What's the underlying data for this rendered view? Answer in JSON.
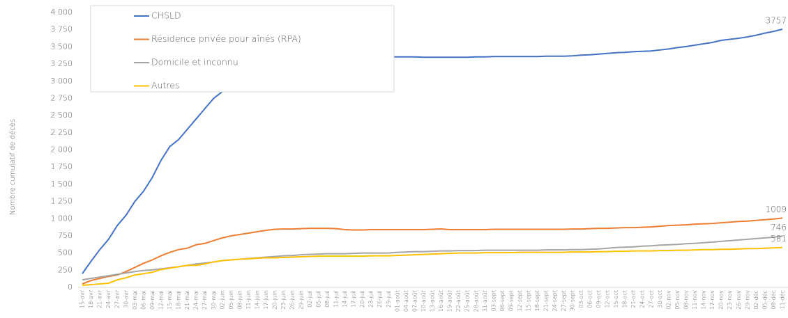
{
  "chart_data": {
    "type": "line",
    "ylabel": "Nombre cumulatif de décès",
    "categories": [
      "15-avr",
      "18-avr",
      "21-avr",
      "24-avr",
      "27-avr",
      "30-avr",
      "03-mai",
      "06-mai",
      "09-mai",
      "12-mai",
      "15-mai",
      "18-mai",
      "21-mai",
      "24-mai",
      "27-mai",
      "30-mai",
      "02-juin",
      "05-juin",
      "08-juin",
      "11-juin",
      "14-juin",
      "17-juin",
      "20-juin",
      "23-juin",
      "26-juin",
      "29-juin",
      "02-juil",
      "05-juil",
      "08-juil",
      "11-juil",
      "14-juil",
      "17-juil",
      "20-juil",
      "23-juil",
      "26-juil",
      "29-juil",
      "01-août",
      "04-août",
      "07-août",
      "10-août",
      "13-août",
      "16-août",
      "19-août",
      "22-août",
      "25-août",
      "28-août",
      "31-août",
      "03-sept",
      "06-sept",
      "09-sept",
      "12-sept",
      "15-sept",
      "18-sept",
      "21-sept",
      "24-sept",
      "27-sept",
      "30-sept",
      "03-oct",
      "06-oct",
      "09-oct",
      "12-oct",
      "15-oct",
      "18-oct",
      "21-oct",
      "24-oct",
      "27-oct",
      "30-oct",
      "02-nov",
      "05-nov",
      "08-nov",
      "11-nov",
      "14-nov",
      "17-nov",
      "20-nov",
      "23-nov",
      "26-nov",
      "29-nov",
      "02-déc",
      "05-déc",
      "08-déc",
      "11-déc"
    ],
    "series": [
      {
        "name": "CHSLD",
        "color": "#4472c4",
        "values": [
          200,
          380,
          550,
          700,
          900,
          1050,
          1250,
          1400,
          1600,
          1850,
          2050,
          2150,
          2300,
          2450,
          2600,
          2750,
          2850,
          2950,
          3050,
          3120,
          3180,
          3230,
          3270,
          3300,
          3320,
          3340,
          3350,
          3355,
          3355,
          3355,
          3355,
          3355,
          3355,
          3355,
          3355,
          3355,
          3355,
          3355,
          3355,
          3350,
          3350,
          3350,
          3350,
          3350,
          3350,
          3355,
          3355,
          3360,
          3360,
          3360,
          3360,
          3360,
          3360,
          3365,
          3365,
          3365,
          3370,
          3380,
          3385,
          3395,
          3405,
          3415,
          3420,
          3430,
          3435,
          3440,
          3455,
          3470,
          3490,
          3505,
          3525,
          3545,
          3565,
          3595,
          3610,
          3625,
          3645,
          3670,
          3700,
          3725,
          3757
        ]
      },
      {
        "name": "Résidence privée pour aînés (RPA)",
        "color": "#ed7d31",
        "values": [
          50,
          100,
          130,
          160,
          180,
          230,
          290,
          350,
          400,
          460,
          510,
          550,
          570,
          620,
          640,
          680,
          720,
          750,
          770,
          790,
          810,
          830,
          845,
          850,
          850,
          855,
          860,
          860,
          860,
          855,
          840,
          835,
          835,
          840,
          840,
          840,
          840,
          840,
          840,
          840,
          845,
          850,
          840,
          840,
          840,
          840,
          840,
          845,
          845,
          845,
          845,
          845,
          845,
          845,
          845,
          845,
          850,
          850,
          855,
          860,
          860,
          865,
          870,
          870,
          875,
          880,
          890,
          900,
          905,
          910,
          920,
          925,
          930,
          940,
          950,
          960,
          965,
          975,
          985,
          995,
          1009
        ]
      },
      {
        "name": "Domicile et inconnu",
        "color": "#a5a5a5",
        "values": [
          110,
          130,
          150,
          170,
          190,
          210,
          230,
          245,
          255,
          270,
          285,
          300,
          320,
          340,
          355,
          370,
          390,
          400,
          410,
          420,
          430,
          440,
          450,
          460,
          465,
          475,
          480,
          485,
          490,
          490,
          490,
          495,
          500,
          500,
          500,
          500,
          510,
          515,
          520,
          520,
          525,
          530,
          530,
          535,
          535,
          535,
          540,
          540,
          540,
          540,
          540,
          540,
          540,
          545,
          545,
          545,
          550,
          550,
          555,
          560,
          570,
          580,
          585,
          590,
          600,
          605,
          615,
          620,
          625,
          635,
          640,
          650,
          660,
          670,
          680,
          690,
          700,
          710,
          720,
          730,
          746
        ]
      },
      {
        "name": "Autres",
        "color": "#ffc000",
        "values": [
          30,
          40,
          50,
          60,
          110,
          140,
          180,
          200,
          220,
          260,
          280,
          300,
          320,
          320,
          340,
          370,
          390,
          400,
          410,
          415,
          425,
          430,
          430,
          435,
          440,
          445,
          450,
          455,
          455,
          455,
          455,
          455,
          455,
          460,
          460,
          460,
          465,
          470,
          475,
          480,
          485,
          490,
          495,
          500,
          500,
          500,
          505,
          505,
          505,
          505,
          510,
          510,
          510,
          510,
          510,
          510,
          515,
          515,
          515,
          520,
          520,
          525,
          525,
          530,
          530,
          530,
          535,
          535,
          540,
          540,
          545,
          550,
          550,
          555,
          555,
          560,
          565,
          565,
          570,
          575,
          581
        ]
      }
    ],
    "ylim": [
      0,
      4000
    ],
    "yticks": [
      0,
      250,
      500,
      750,
      {
        "value": 1000,
        "label": "1 000"
      },
      {
        "value": 1250,
        "label": "1 250"
      },
      {
        "value": 1500,
        "label": "1 500"
      },
      {
        "value": 1750,
        "label": "1 750"
      },
      {
        "value": 2000,
        "label": "2 000"
      },
      {
        "value": 2250,
        "label": "2 250"
      },
      {
        "value": 2500,
        "label": "2 500"
      },
      {
        "value": 2750,
        "label": "2 750"
      },
      {
        "value": 3000,
        "label": "3 000"
      },
      {
        "value": 3250,
        "label": "3 250"
      },
      {
        "value": 3500,
        "label": "3 500"
      },
      {
        "value": 3750,
        "label": "3 750"
      },
      {
        "value": 4000,
        "label": "4 000"
      }
    ],
    "grid": false
  }
}
